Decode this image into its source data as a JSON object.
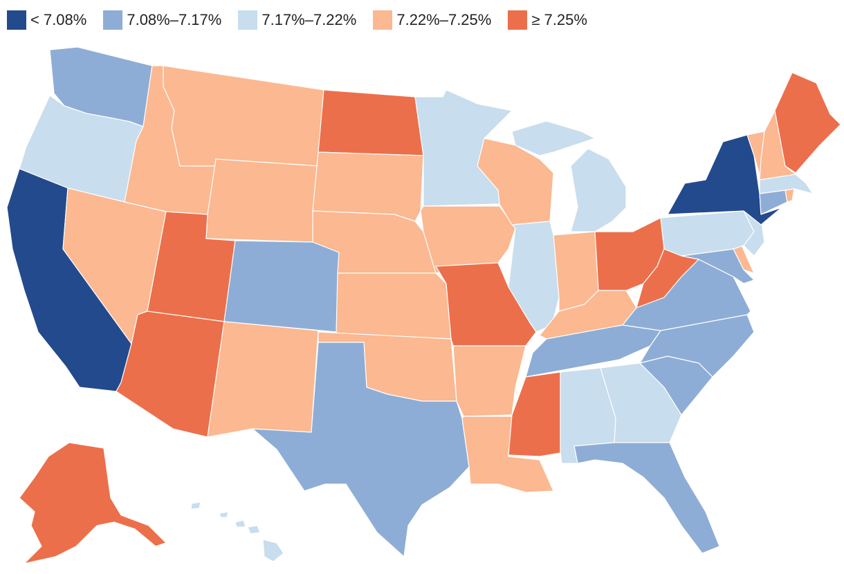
{
  "legend": {
    "items": [
      {
        "label": "< 7.08%",
        "color": "#234a8c"
      },
      {
        "label": "7.08%–7.17%",
        "color": "#8eadd6"
      },
      {
        "label": "7.17%–7.22%",
        "color": "#c8dded"
      },
      {
        "label": "7.22%–7.25%",
        "color": "#fbb891"
      },
      {
        "label": "≥ 7.25%",
        "color": "#ec6f4b"
      }
    ]
  },
  "states": [
    {
      "name": "Washington",
      "bin": 1
    },
    {
      "name": "Oregon",
      "bin": 2
    },
    {
      "name": "California",
      "bin": 0
    },
    {
      "name": "Nevada",
      "bin": 3
    },
    {
      "name": "Idaho",
      "bin": 3
    },
    {
      "name": "Montana",
      "bin": 3
    },
    {
      "name": "Wyoming",
      "bin": 3
    },
    {
      "name": "Utah",
      "bin": 4
    },
    {
      "name": "Arizona",
      "bin": 4
    },
    {
      "name": "Colorado",
      "bin": 1
    },
    {
      "name": "New Mexico",
      "bin": 3
    },
    {
      "name": "North Dakota",
      "bin": 4
    },
    {
      "name": "South Dakota",
      "bin": 3
    },
    {
      "name": "Nebraska",
      "bin": 3
    },
    {
      "name": "Kansas",
      "bin": 3
    },
    {
      "name": "Oklahoma",
      "bin": 3
    },
    {
      "name": "Texas",
      "bin": 1
    },
    {
      "name": "Minnesota",
      "bin": 2
    },
    {
      "name": "Iowa",
      "bin": 3
    },
    {
      "name": "Missouri",
      "bin": 4
    },
    {
      "name": "Arkansas",
      "bin": 3
    },
    {
      "name": "Louisiana",
      "bin": 3
    },
    {
      "name": "Wisconsin",
      "bin": 3
    },
    {
      "name": "Illinois",
      "bin": 2
    },
    {
      "name": "Michigan",
      "bin": 2
    },
    {
      "name": "Indiana",
      "bin": 3
    },
    {
      "name": "Ohio",
      "bin": 4
    },
    {
      "name": "Kentucky",
      "bin": 3
    },
    {
      "name": "Tennessee",
      "bin": 1
    },
    {
      "name": "Mississippi",
      "bin": 4
    },
    {
      "name": "Alabama",
      "bin": 2
    },
    {
      "name": "Georgia",
      "bin": 2
    },
    {
      "name": "Florida",
      "bin": 1
    },
    {
      "name": "South Carolina",
      "bin": 1
    },
    {
      "name": "North Carolina",
      "bin": 1
    },
    {
      "name": "Virginia",
      "bin": 1
    },
    {
      "name": "West Virginia",
      "bin": 4
    },
    {
      "name": "Maryland",
      "bin": 1
    },
    {
      "name": "Delaware",
      "bin": 3
    },
    {
      "name": "Pennsylvania",
      "bin": 2
    },
    {
      "name": "New Jersey",
      "bin": 2
    },
    {
      "name": "New York",
      "bin": 0
    },
    {
      "name": "Connecticut",
      "bin": 1
    },
    {
      "name": "Rhode Island",
      "bin": 3
    },
    {
      "name": "Massachusetts",
      "bin": 2
    },
    {
      "name": "Vermont",
      "bin": 3
    },
    {
      "name": "New Hampshire",
      "bin": 3
    },
    {
      "name": "Maine",
      "bin": 4
    },
    {
      "name": "Alaska",
      "bin": 4
    },
    {
      "name": "Hawaii",
      "bin": 2
    }
  ]
}
